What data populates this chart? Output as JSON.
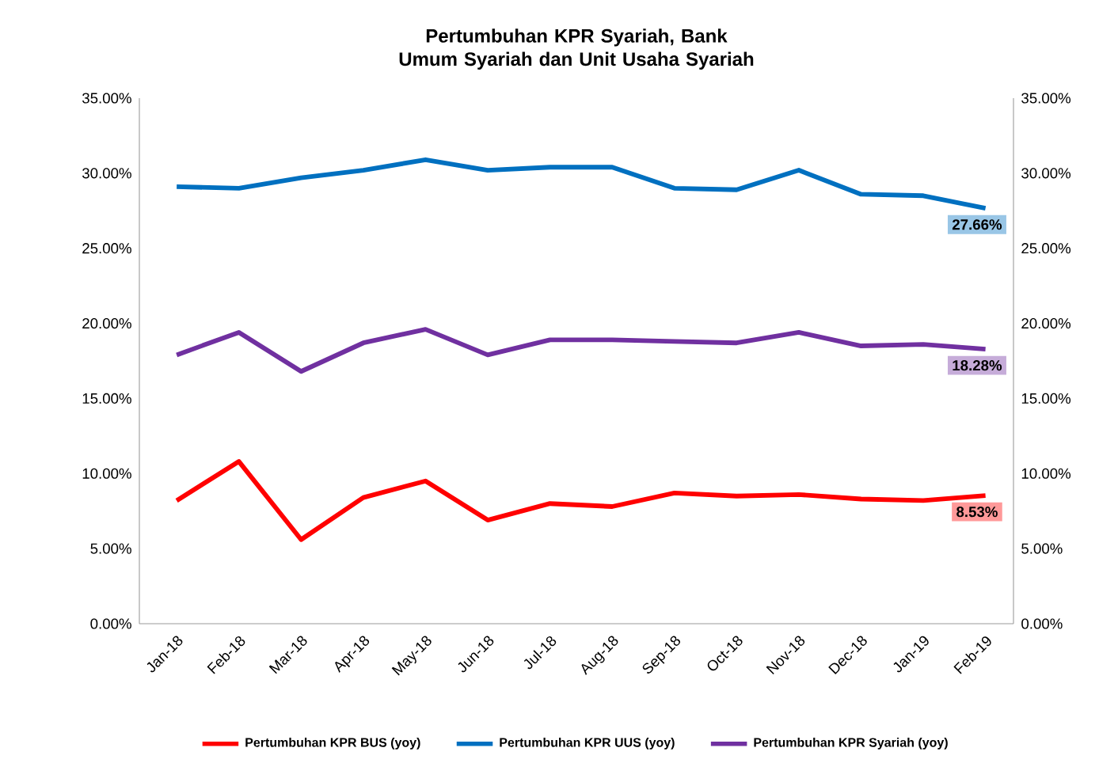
{
  "chart_data": {
    "type": "line",
    "title": "Pertumbuhan KPR Syariah, Bank Umum Syariah dan Unit Usaha Syariah",
    "categories": [
      "Jan-18",
      "Feb-18",
      "Mar-18",
      "Apr-18",
      "May-18",
      "Jun-18",
      "Jul-18",
      "Aug-18",
      "Sep-18",
      "Oct-18",
      "Nov-18",
      "Dec-18",
      "Jan-19",
      "Feb-19"
    ],
    "series": [
      {
        "name": "Pertumbuhan KPR BUS (yoy)",
        "color": "#ff0000",
        "values": [
          8.2,
          10.8,
          5.6,
          8.4,
          9.5,
          6.9,
          8.0,
          7.8,
          8.7,
          8.5,
          8.6,
          8.3,
          8.2,
          8.53
        ],
        "value_labels": [
          null,
          null,
          null,
          null,
          null,
          null,
          null,
          null,
          null,
          null,
          null,
          null,
          null,
          "8.53%"
        ]
      },
      {
        "name": "Pertumbuhan KPR UUS (yoy)",
        "color": "#0070c0",
        "values": [
          29.1,
          29.0,
          29.7,
          30.2,
          30.9,
          30.2,
          30.4,
          30.4,
          29.0,
          28.9,
          30.2,
          28.6,
          28.5,
          27.66
        ],
        "value_labels": [
          null,
          null,
          null,
          null,
          null,
          null,
          null,
          null,
          null,
          null,
          null,
          null,
          null,
          "27.66%"
        ]
      },
      {
        "name": "Pertumbuhan KPR Syariah (yoy)",
        "color": "#7030a0",
        "values": [
          17.9,
          19.4,
          16.8,
          18.7,
          19.6,
          17.9,
          18.9,
          18.9,
          18.8,
          18.7,
          19.4,
          18.5,
          18.6,
          18.28
        ],
        "value_labels": [
          null,
          null,
          null,
          null,
          null,
          null,
          null,
          null,
          null,
          null,
          null,
          null,
          null,
          "18.28%"
        ]
      }
    ],
    "ylim": [
      0,
      35
    ],
    "yticks": [
      {
        "value": 0,
        "label": "0.00%"
      },
      {
        "value": 5,
        "label": "5.00%"
      },
      {
        "value": 10,
        "label": "10.00%"
      },
      {
        "value": 15,
        "label": "15.00%"
      },
      {
        "value": 20,
        "label": "20.00%"
      },
      {
        "value": 25,
        "label": "25.00%"
      },
      {
        "value": 30,
        "label": "30.00%"
      },
      {
        "value": 35,
        "label": "35.00%"
      }
    ],
    "y2lim": [
      0,
      35
    ],
    "y2ticks": [
      {
        "value": 0,
        "label": "0.00%"
      },
      {
        "value": 5,
        "label": "5.00%"
      },
      {
        "value": 10,
        "label": "10.00%"
      },
      {
        "value": 15,
        "label": "15.00%"
      },
      {
        "value": 20,
        "label": "20.00%"
      },
      {
        "value": 25,
        "label": "25.00%"
      },
      {
        "value": 30,
        "label": "30.00%"
      },
      {
        "value": 35,
        "label": "35.00%"
      }
    ],
    "legend": "bottom"
  }
}
